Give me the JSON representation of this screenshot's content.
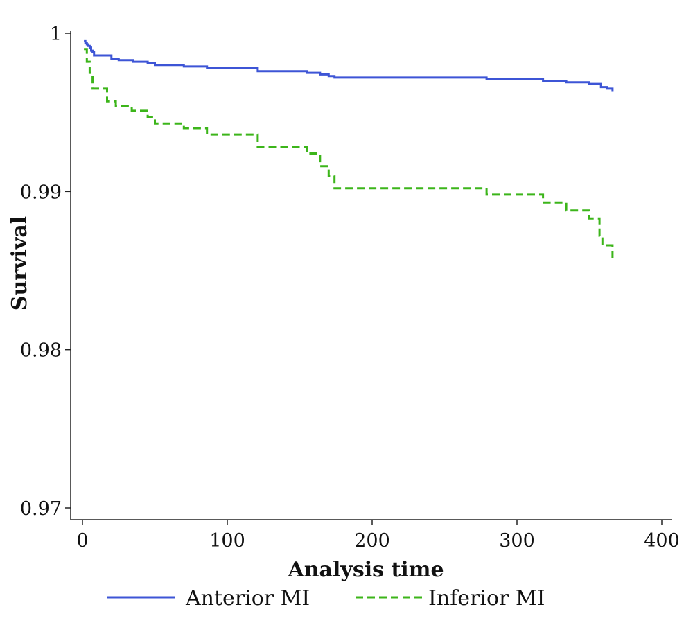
{
  "chart_data": {
    "type": "line",
    "title": "",
    "xlabel": "Analysis time",
    "ylabel": "Survival",
    "xlim": [
      0,
      400
    ],
    "ylim": [
      0.97,
      1
    ],
    "x_ticks": [
      0,
      100,
      200,
      300,
      400
    ],
    "x_tick_labels": [
      "0",
      "100",
      "200",
      "300",
      "400"
    ],
    "y_ticks": [
      0.97,
      0.98,
      0.99,
      1
    ],
    "y_tick_labels": [
      "0.97",
      "0.98",
      "0.99",
      "1"
    ],
    "grid": false,
    "legend_position": "bottom",
    "series": [
      {
        "name": "Anterior MI",
        "color": "#3d55d6",
        "dash": "solid",
        "points": [
          [
            1,
            0.9995
          ],
          [
            2,
            0.9994
          ],
          [
            3,
            0.9993
          ],
          [
            4,
            0.9992
          ],
          [
            5,
            0.9991
          ],
          [
            6,
            0.9989
          ],
          [
            7,
            0.9988
          ],
          [
            8,
            0.9986
          ],
          [
            20,
            0.9984
          ],
          [
            25,
            0.9983
          ],
          [
            35,
            0.9982
          ],
          [
            45,
            0.9981
          ],
          [
            50,
            0.998
          ],
          [
            70,
            0.9979
          ],
          [
            86,
            0.9978
          ],
          [
            121,
            0.9976
          ],
          [
            155,
            0.9975
          ],
          [
            164,
            0.9974
          ],
          [
            170,
            0.9973
          ],
          [
            174,
            0.9972
          ],
          [
            279,
            0.9971
          ],
          [
            318,
            0.997
          ],
          [
            334,
            0.9969
          ],
          [
            350,
            0.9968
          ],
          [
            358,
            0.9966
          ],
          [
            362,
            0.9965
          ],
          [
            366,
            0.9963
          ]
        ]
      },
      {
        "name": "Inferior MI",
        "color": "#3cb51a",
        "dash": "dashed",
        "points": [
          [
            1,
            0.999
          ],
          [
            3,
            0.9982
          ],
          [
            5,
            0.9975
          ],
          [
            7,
            0.9965
          ],
          [
            17,
            0.9957
          ],
          [
            23,
            0.9954
          ],
          [
            34,
            0.9951
          ],
          [
            45,
            0.9947
          ],
          [
            50,
            0.9943
          ],
          [
            70,
            0.994
          ],
          [
            86,
            0.9936
          ],
          [
            121,
            0.9928
          ],
          [
            155,
            0.9924
          ],
          [
            164,
            0.9916
          ],
          [
            170,
            0.991
          ],
          [
            174,
            0.9902
          ],
          [
            279,
            0.9898
          ],
          [
            318,
            0.9893
          ],
          [
            334,
            0.9888
          ],
          [
            350,
            0.9883
          ],
          [
            357,
            0.9872
          ],
          [
            359,
            0.9866
          ],
          [
            366,
            0.9856
          ]
        ]
      }
    ]
  }
}
